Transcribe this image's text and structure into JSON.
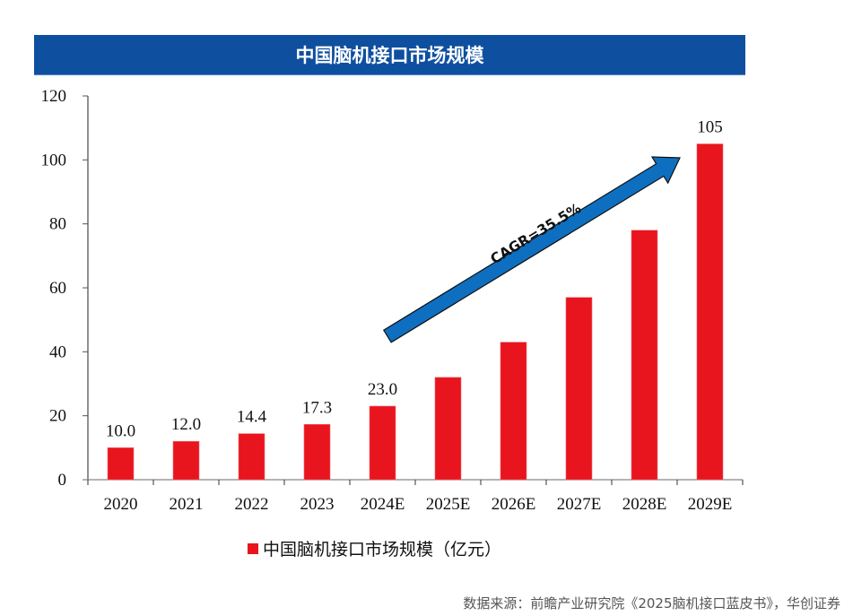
{
  "chart_data": {
    "type": "bar",
    "title": "中国脑机接口市场规模",
    "xlabel": "",
    "ylabel": "",
    "categories": [
      "2020",
      "2021",
      "2022",
      "2023",
      "2024E",
      "2025E",
      "2026E",
      "2027E",
      "2028E",
      "2029E"
    ],
    "series": [
      {
        "name": "中国脑机接口市场规模（亿元）",
        "color": "#E8141E",
        "values": [
          10.0,
          12.0,
          14.4,
          17.3,
          23.0,
          32,
          43,
          57,
          78,
          105
        ]
      }
    ],
    "data_labels": [
      "10.0",
      "12.0",
      "14.4",
      "17.3",
      "23.0",
      "",
      "",
      "",
      "",
      "105"
    ],
    "ylim": [
      0,
      120
    ],
    "yticks": [
      0,
      20,
      40,
      60,
      80,
      100,
      120
    ],
    "grid": false,
    "legend_position": "bottom",
    "annotations": [
      {
        "text": "CAGR=35.5%",
        "kind": "arrow",
        "from_category": "2024E",
        "to_category": "2029E",
        "color": "#0E6FC0"
      }
    ]
  },
  "colors": {
    "title_bar": "#0E4FA0",
    "bar": "#E8141E",
    "arrow": "#0E6FC0"
  },
  "header": {
    "title": "中国脑机接口市场规模"
  },
  "legend": {
    "label": "中国脑机接口市场规模（亿元）"
  },
  "source": {
    "text": "数据来源：前瞻产业研究院《2025脑机接口蓝皮书》，华创证券"
  }
}
